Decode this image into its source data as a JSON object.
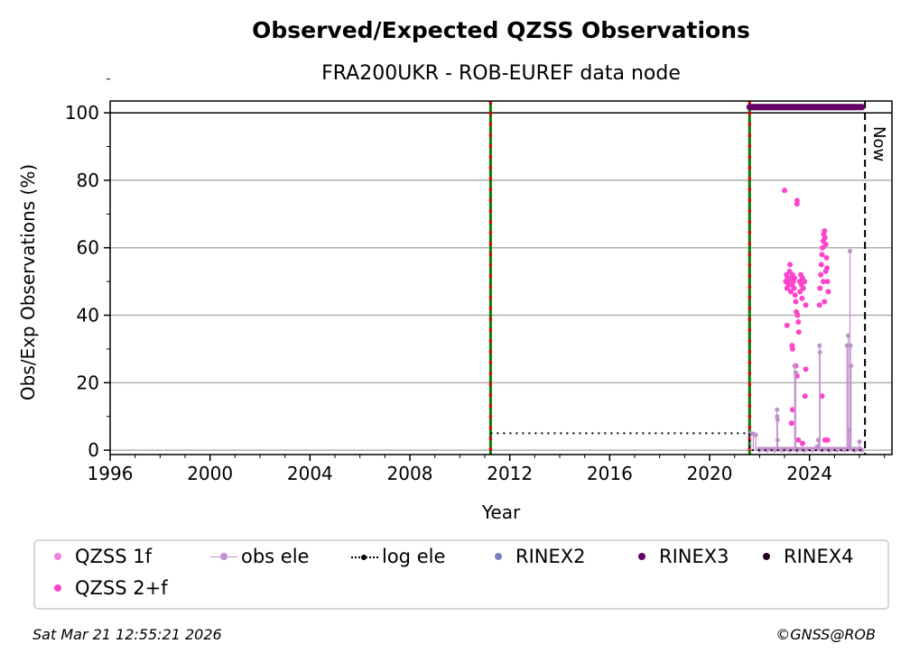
{
  "chart_data": {
    "type": "scatter",
    "title": "Observed/Expected QZSS Observations",
    "subtitle": "FRA200UKR - ROB-EUREF data node",
    "xlabel": "Year",
    "ylabel": "Obs/Exp Observations (%)",
    "xlim": [
      1996,
      2027.3
    ],
    "ylim": [
      -1.3,
      103.5
    ],
    "xticks": [
      "1996",
      "2000",
      "2004",
      "2008",
      "2012",
      "2016",
      "2020",
      "2024"
    ],
    "xtick_values": [
      1996,
      2000,
      2004,
      2008,
      2012,
      2016,
      2020,
      2024
    ],
    "yticks": [
      "0",
      "20",
      "40",
      "60",
      "80",
      "100"
    ],
    "ytick_values": [
      0,
      20,
      40,
      60,
      80,
      100
    ],
    "grid": "horizontal",
    "now_label": "Now",
    "now_year": 2026.22,
    "vertical_markers": [
      2011.23,
      2021.6
    ],
    "series": [
      {
        "name": "QZSS 1f",
        "color": "#f080e0",
        "points": []
      },
      {
        "name": "QZSS 2+f",
        "color": "#ff44cc",
        "points": [
          [
            2023.0,
            77
          ],
          [
            2023.05,
            50
          ],
          [
            2023.08,
            52
          ],
          [
            2023.1,
            48
          ],
          [
            2023.12,
            51
          ],
          [
            2023.15,
            49
          ],
          [
            2023.18,
            50
          ],
          [
            2023.2,
            53
          ],
          [
            2023.22,
            55
          ],
          [
            2023.25,
            47
          ],
          [
            2023.28,
            51
          ],
          [
            2023.3,
            49
          ],
          [
            2023.32,
            52
          ],
          [
            2023.35,
            50
          ],
          [
            2023.38,
            48
          ],
          [
            2023.4,
            51
          ],
          [
            2023.42,
            46
          ],
          [
            2023.45,
            44
          ],
          [
            2023.47,
            41
          ],
          [
            2023.5,
            74
          ],
          [
            2023.5,
            73
          ],
          [
            2023.52,
            40
          ],
          [
            2023.55,
            38
          ],
          [
            2023.57,
            35
          ],
          [
            2023.6,
            50
          ],
          [
            2023.62,
            47
          ],
          [
            2023.65,
            52
          ],
          [
            2023.68,
            49
          ],
          [
            2023.7,
            45
          ],
          [
            2023.72,
            51
          ],
          [
            2023.75,
            48
          ],
          [
            2023.8,
            50
          ],
          [
            2023.1,
            37
          ],
          [
            2023.3,
            31
          ],
          [
            2023.32,
            30
          ],
          [
            2023.32,
            12
          ],
          [
            2023.28,
            8
          ],
          [
            2023.45,
            25
          ],
          [
            2023.5,
            22
          ],
          [
            2023.55,
            3
          ],
          [
            2023.72,
            2
          ],
          [
            2023.85,
            43
          ],
          [
            2023.85,
            24
          ],
          [
            2023.82,
            16
          ],
          [
            2024.4,
            43
          ],
          [
            2024.42,
            48
          ],
          [
            2024.45,
            52
          ],
          [
            2024.47,
            55
          ],
          [
            2024.5,
            58
          ],
          [
            2024.52,
            60
          ],
          [
            2024.55,
            62
          ],
          [
            2024.57,
            64
          ],
          [
            2024.6,
            65
          ],
          [
            2024.62,
            63
          ],
          [
            2024.65,
            61
          ],
          [
            2024.68,
            57
          ],
          [
            2024.7,
            54
          ],
          [
            2024.72,
            50
          ],
          [
            2024.75,
            47
          ],
          [
            2024.6,
            44
          ],
          [
            2024.5,
            16
          ],
          [
            2024.62,
            3
          ],
          [
            2024.72,
            3
          ],
          [
            2024.55,
            50
          ],
          [
            2024.65,
            53
          ]
        ]
      },
      {
        "name": "obs ele",
        "color": "#c090cc",
        "points": [
          [
            2021.65,
            5
          ],
          [
            2021.75,
            4.8
          ],
          [
            2021.85,
            4.5
          ],
          [
            2022.0,
            0
          ],
          [
            2022.3,
            0
          ],
          [
            2022.6,
            0
          ],
          [
            2022.7,
            12
          ],
          [
            2022.7,
            10
          ],
          [
            2022.72,
            9
          ],
          [
            2022.72,
            3
          ],
          [
            2022.9,
            0
          ],
          [
            2023.2,
            0
          ],
          [
            2023.4,
            25
          ],
          [
            2023.45,
            23
          ],
          [
            2023.5,
            0
          ],
          [
            2023.8,
            0
          ],
          [
            2024.1,
            0
          ],
          [
            2024.3,
            1
          ],
          [
            2024.35,
            3
          ],
          [
            2024.4,
            31
          ],
          [
            2024.42,
            29
          ],
          [
            2024.5,
            0
          ],
          [
            2024.8,
            0
          ],
          [
            2025.1,
            0
          ],
          [
            2025.4,
            0
          ],
          [
            2025.5,
            31
          ],
          [
            2025.55,
            34
          ],
          [
            2025.6,
            6
          ],
          [
            2025.62,
            59
          ],
          [
            2025.64,
            31
          ],
          [
            2025.66,
            25
          ],
          [
            2025.8,
            0
          ],
          [
            2026.0,
            2.5
          ],
          [
            2026.1,
            0
          ]
        ]
      },
      {
        "name": "log ele",
        "color": "#000000",
        "points": [
          [
            2011.23,
            5
          ],
          [
            2021.6,
            5
          ],
          [
            2021.6,
            0
          ],
          [
            2026.22,
            0
          ]
        ]
      },
      {
        "name": "RINEX2",
        "color": "#8080c0",
        "points": []
      },
      {
        "name": "RINEX3",
        "color": "#660066",
        "range": [
          2021.6,
          2026.1
        ],
        "value": 101.7
      },
      {
        "name": "RINEX4",
        "color": "#220022",
        "points": []
      }
    ]
  },
  "legend": [
    "QZSS 1f",
    "obs ele",
    "log ele",
    "RINEX2",
    "RINEX3",
    "RINEX4",
    "QZSS 2+f"
  ],
  "footer": {
    "timestamp": "Sat Mar 21 12:55:21 2026",
    "credit": "©GNSS@ROB"
  }
}
